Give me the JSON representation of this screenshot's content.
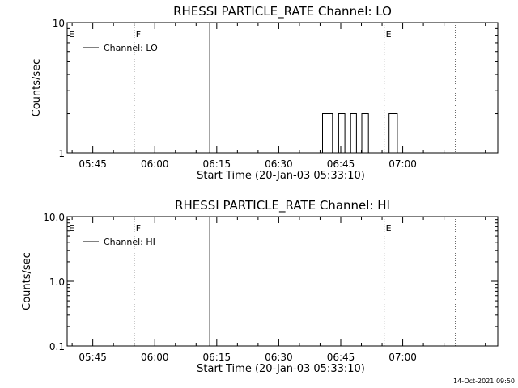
{
  "footer": {
    "timestamp": "14-Oct-2021 09:50"
  },
  "chart_data": [
    {
      "type": "line",
      "title": "RHESSI PARTICLE_RATE Channel: LO",
      "xlabel": "Start Time (20-Jan-03 05:33:10)",
      "ylabel": "Counts/sec",
      "yscale": "log",
      "ylim": [
        1,
        10
      ],
      "xlim_minutes": [
        5.8,
        110.0
      ],
      "yticks": [
        {
          "v": 1,
          "label": "1"
        },
        {
          "v": 10,
          "label": "10"
        }
      ],
      "xticks": [
        {
          "t": 12,
          "label": "05:45"
        },
        {
          "t": 27,
          "label": "06:00"
        },
        {
          "t": 42,
          "label": "06:15"
        },
        {
          "t": 57,
          "label": "06:30"
        },
        {
          "t": 72,
          "label": "06:45"
        },
        {
          "t": 87,
          "label": "07:00"
        }
      ],
      "legend": {
        "label": "Channel: LO",
        "placement": "top-left"
      },
      "markers": [
        {
          "t": 5.8,
          "label": "E",
          "style": "dotted"
        },
        {
          "t": 22.0,
          "label": "F",
          "style": "dotted"
        },
        {
          "t": 40.3,
          "label": "",
          "style": "solid"
        },
        {
          "t": 82.5,
          "label": "E",
          "style": "dotted"
        },
        {
          "t": 99.8,
          "label": "",
          "style": "dotted"
        }
      ],
      "series": [
        {
          "style": "step",
          "x": [
            5.8,
            67.2,
            67.6,
            69.5,
            70.0,
            71.2,
            71.5,
            72.7,
            73.0,
            74.0,
            74.4,
            75.3,
            75.8,
            76.7,
            77.1,
            78.3,
            78.7,
            83.3,
            83.7,
            85.3,
            85.7
          ],
          "y": [
            1,
            1,
            2,
            2,
            1,
            1,
            2,
            2,
            1,
            1,
            2,
            2,
            1,
            1,
            2,
            2,
            1,
            1,
            2,
            2,
            1
          ]
        }
      ]
    },
    {
      "type": "line",
      "title": "RHESSI PARTICLE_RATE Channel: HI",
      "xlabel": "Start Time (20-Jan-03 05:33:10)",
      "ylabel": "Counts/sec",
      "yscale": "log",
      "ylim": [
        0.1,
        10
      ],
      "xlim_minutes": [
        5.8,
        110.0
      ],
      "yticks": [
        {
          "v": 0.1,
          "label": "0.1"
        },
        {
          "v": 1,
          "label": "1.0"
        },
        {
          "v": 10,
          "label": "10.0"
        }
      ],
      "xticks": [
        {
          "t": 12,
          "label": "05:45"
        },
        {
          "t": 27,
          "label": "06:00"
        },
        {
          "t": 42,
          "label": "06:15"
        },
        {
          "t": 57,
          "label": "06:30"
        },
        {
          "t": 72,
          "label": "06:45"
        },
        {
          "t": 87,
          "label": "07:00"
        }
      ],
      "legend": {
        "label": "Channel: HI",
        "placement": "top-left"
      },
      "markers": [
        {
          "t": 5.8,
          "label": "E",
          "style": "dotted"
        },
        {
          "t": 22.0,
          "label": "F",
          "style": "dotted"
        },
        {
          "t": 40.3,
          "label": "",
          "style": "solid"
        },
        {
          "t": 82.5,
          "label": "E",
          "style": "dotted"
        },
        {
          "t": 99.8,
          "label": "",
          "style": "dotted"
        }
      ],
      "series": []
    }
  ]
}
